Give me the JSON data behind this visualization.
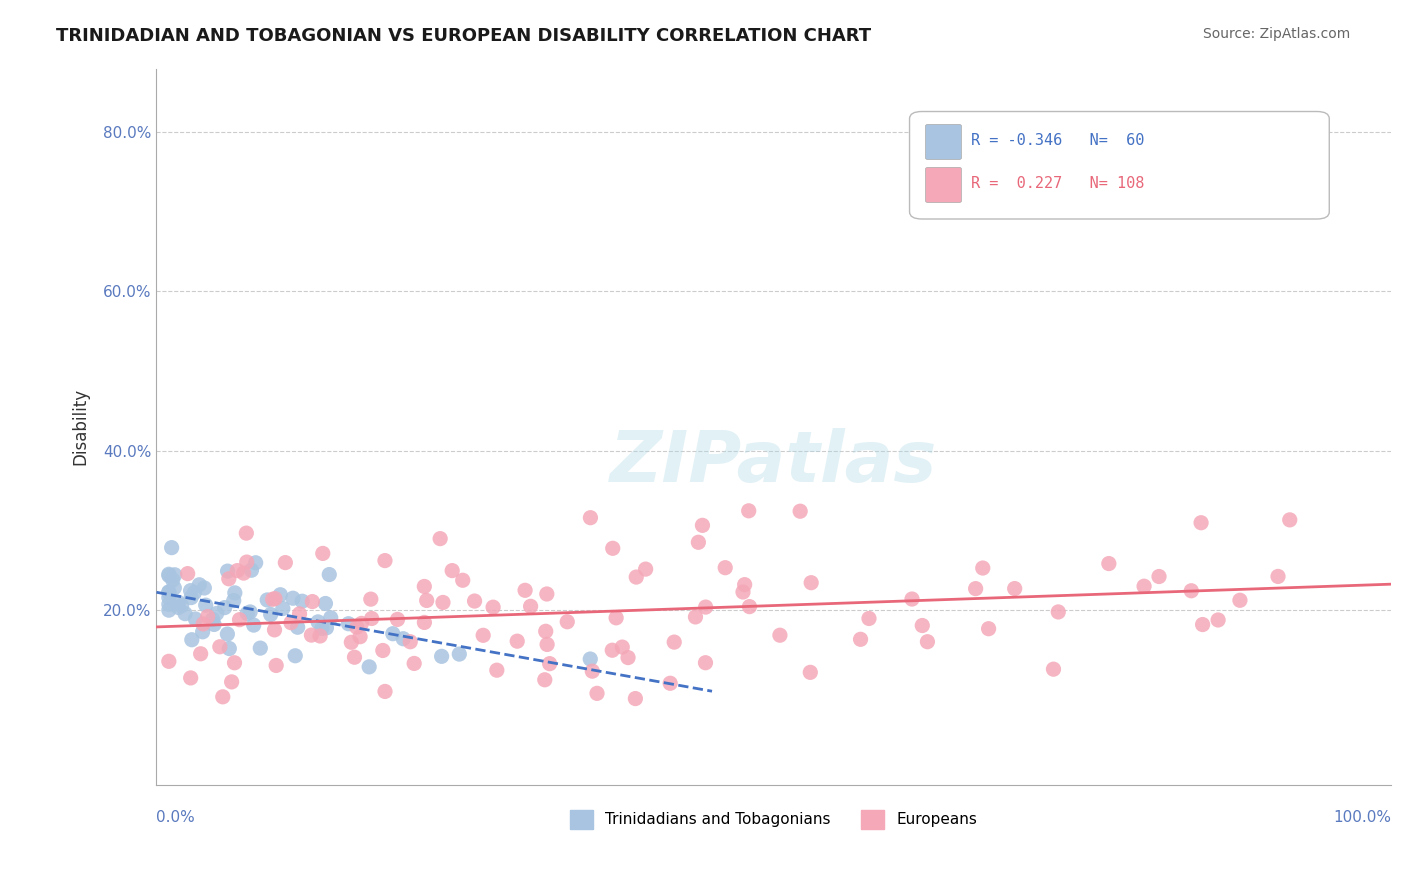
{
  "title": "TRINIDADIAN AND TOBAGONIAN VS EUROPEAN DISABILITY CORRELATION CHART",
  "source": "Source: ZipAtlas.com",
  "ylabel": "Disability",
  "x_range": [
    0.0,
    1.0
  ],
  "y_range": [
    -0.02,
    0.88
  ],
  "blue_color": "#a8c4e0",
  "pink_color": "#f4a8b8",
  "blue_line_color": "#4472c4",
  "pink_line_color": "#e8687a",
  "axis_color": "#5a7abf",
  "background_color": "#ffffff",
  "grid_color": "#cccccc",
  "legend_entries": [
    {
      "r": "-0.346",
      "n": "60"
    },
    {
      "r": "0.227",
      "n": "108"
    }
  ]
}
